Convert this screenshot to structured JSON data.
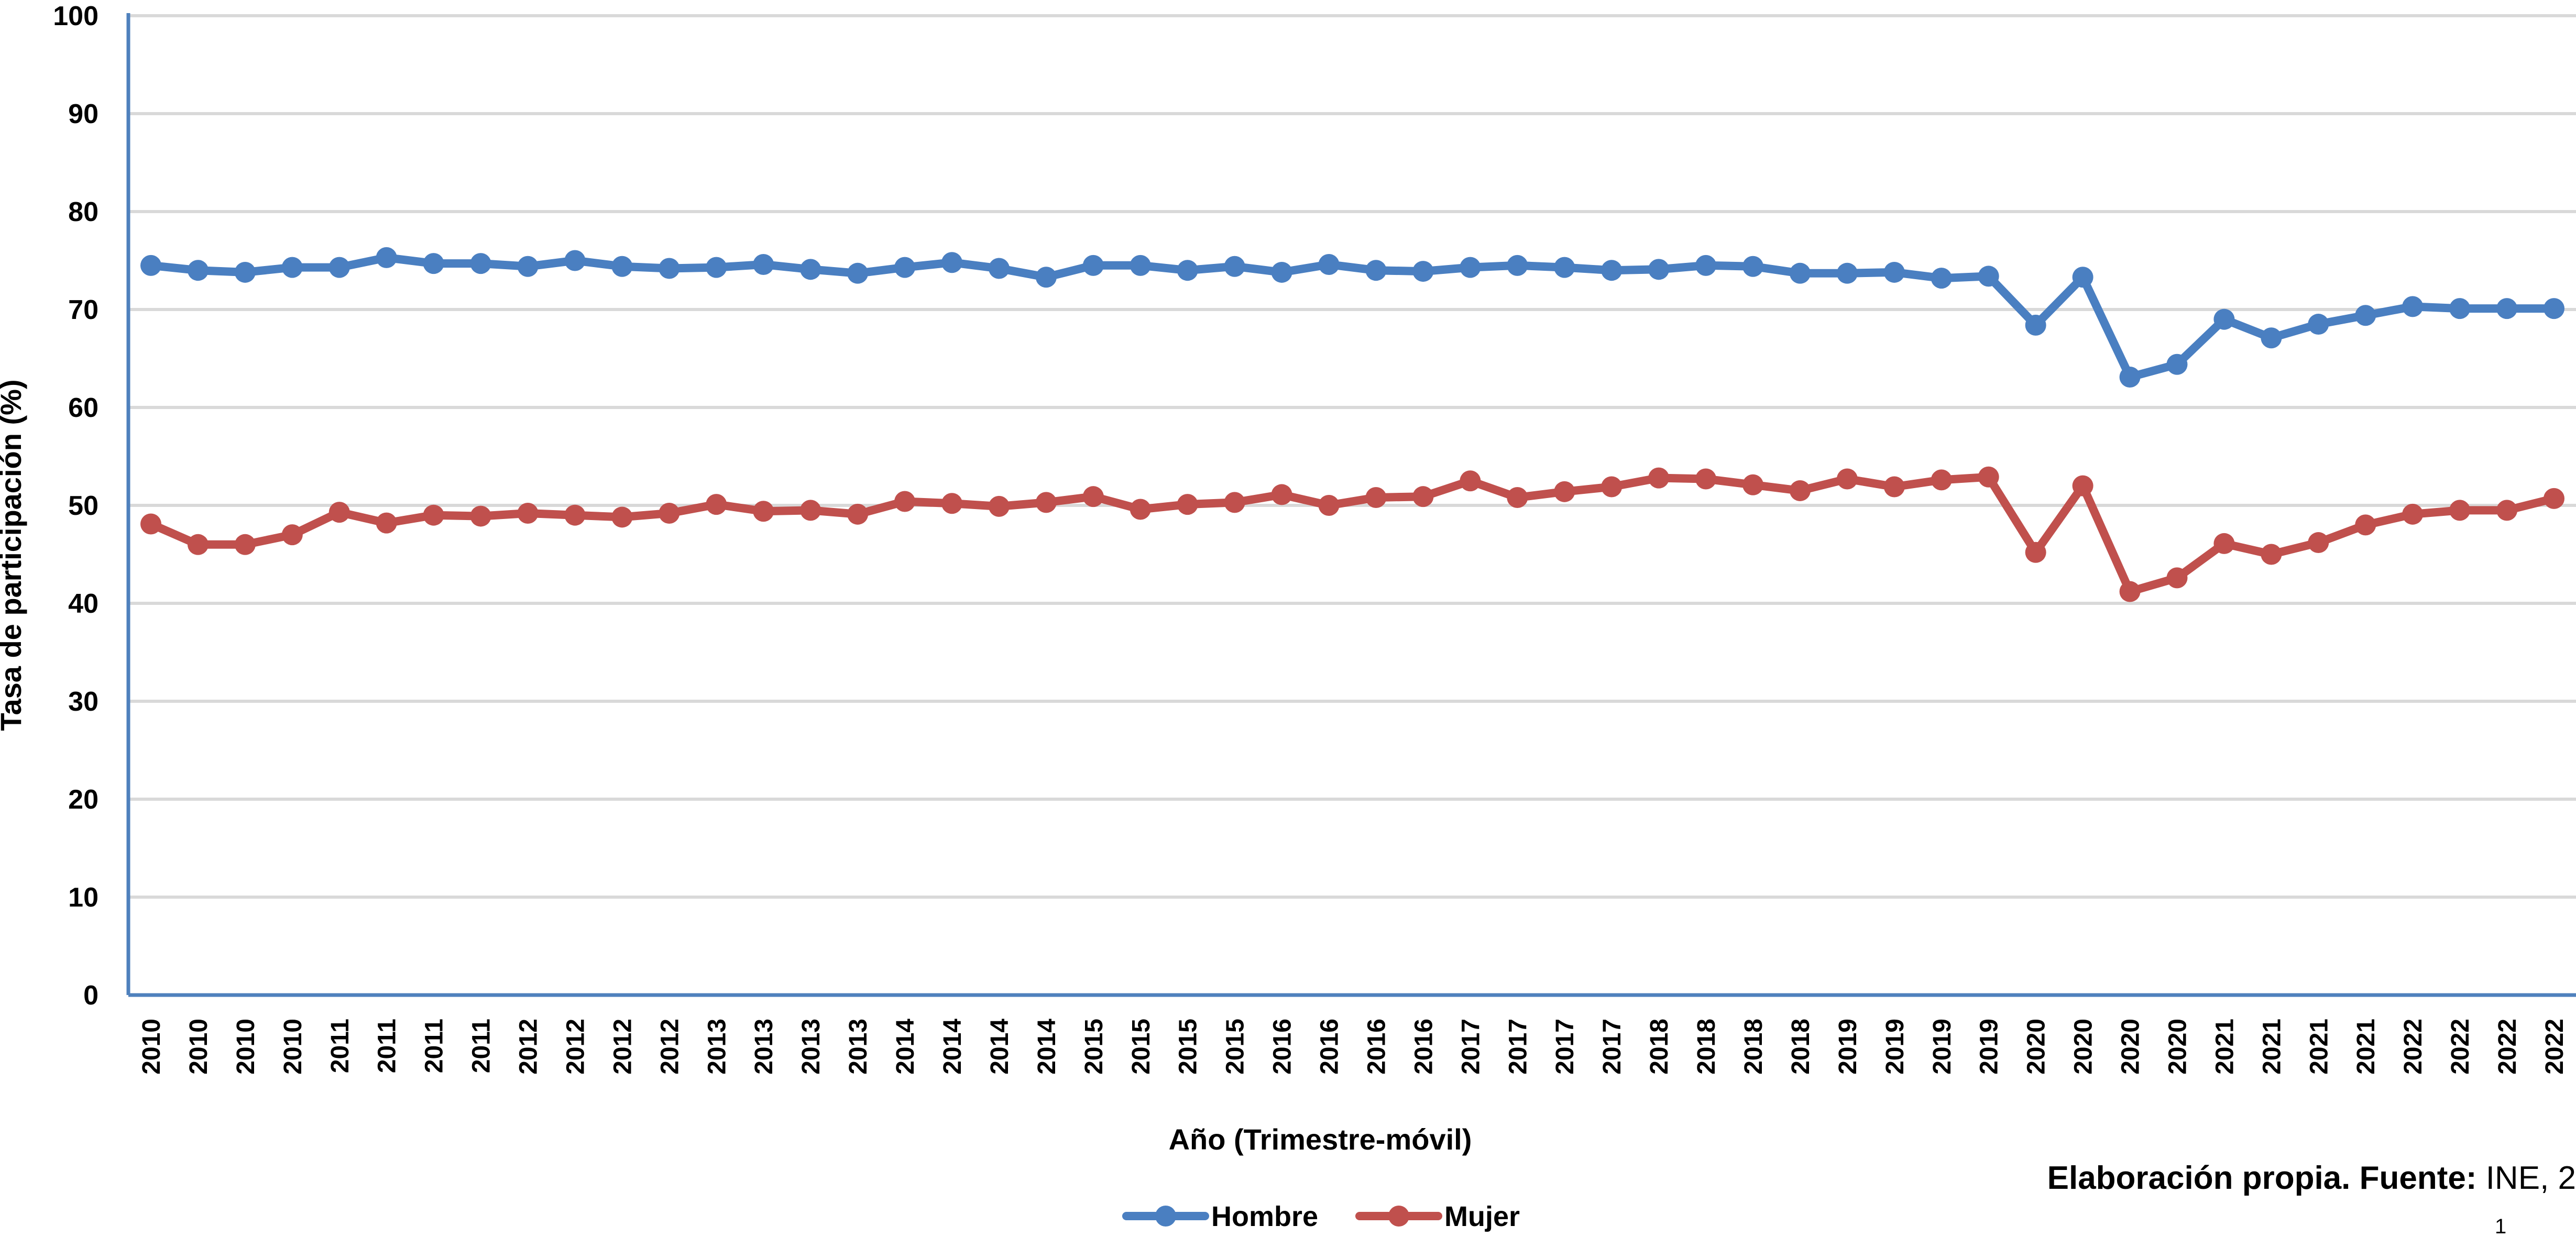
{
  "chart_data": {
    "type": "line",
    "ylabel": "Tasa de participación (%)",
    "xlabel": "Año (Trimestre-móvil)",
    "ylim": [
      0,
      100
    ],
    "yticks": [
      "0",
      "10",
      "20",
      "30",
      "40",
      "50",
      "60",
      "70",
      "80",
      "90",
      "100"
    ],
    "grid": true,
    "legend_position": "bottom-center",
    "categories": [
      "2010",
      "2010",
      "2010",
      "2010",
      "2011",
      "2011",
      "2011",
      "2011",
      "2012",
      "2012",
      "2012",
      "2012",
      "2013",
      "2013",
      "2013",
      "2013",
      "2014",
      "2014",
      "2014",
      "2014",
      "2015",
      "2015",
      "2015",
      "2015",
      "2016",
      "2016",
      "2016",
      "2016",
      "2017",
      "2017",
      "2017",
      "2017",
      "2018",
      "2018",
      "2018",
      "2018",
      "2019",
      "2019",
      "2019",
      "2019",
      "2020",
      "2020",
      "2020",
      "2020",
      "2021",
      "2021",
      "2021",
      "2021",
      "2022",
      "2022",
      "2022",
      "2022"
    ],
    "series": [
      {
        "name": "Hombre",
        "color": "#4a7fc1",
        "values": [
          74.5,
          74.0,
          73.8,
          74.3,
          74.3,
          75.3,
          74.7,
          74.7,
          74.4,
          75.0,
          74.4,
          74.2,
          74.3,
          74.6,
          74.1,
          73.7,
          74.3,
          74.8,
          74.2,
          73.3,
          74.5,
          74.5,
          74.0,
          74.4,
          73.8,
          74.6,
          74.0,
          73.9,
          74.3,
          74.5,
          74.3,
          74.0,
          74.1,
          74.5,
          74.4,
          73.7,
          73.7,
          73.8,
          73.2,
          73.4,
          68.4,
          73.3,
          63.1,
          64.4,
          69.0,
          67.1,
          68.5,
          69.4,
          70.3,
          70.1,
          70.1,
          70.1
        ]
      },
      {
        "name": "Mujer",
        "color": "#c0504d",
        "values": [
          48.1,
          46.0,
          46.0,
          47.0,
          49.3,
          48.2,
          49.0,
          48.9,
          49.2,
          49.0,
          48.8,
          49.2,
          50.1,
          49.4,
          49.5,
          49.1,
          50.4,
          50.2,
          49.9,
          50.3,
          50.9,
          49.6,
          50.1,
          50.3,
          51.1,
          50.0,
          50.8,
          50.9,
          52.5,
          50.8,
          51.4,
          51.9,
          52.8,
          52.7,
          52.1,
          51.5,
          52.7,
          51.9,
          52.6,
          52.9,
          45.2,
          52.0,
          41.2,
          42.6,
          46.1,
          45.0,
          46.2,
          48.0,
          49.1,
          49.5,
          49.5,
          50.7
        ]
      }
    ]
  },
  "source_note": {
    "bold": "Elaboración propia. Fuente:",
    "normal": " INE, 2"
  },
  "page_number": "1"
}
